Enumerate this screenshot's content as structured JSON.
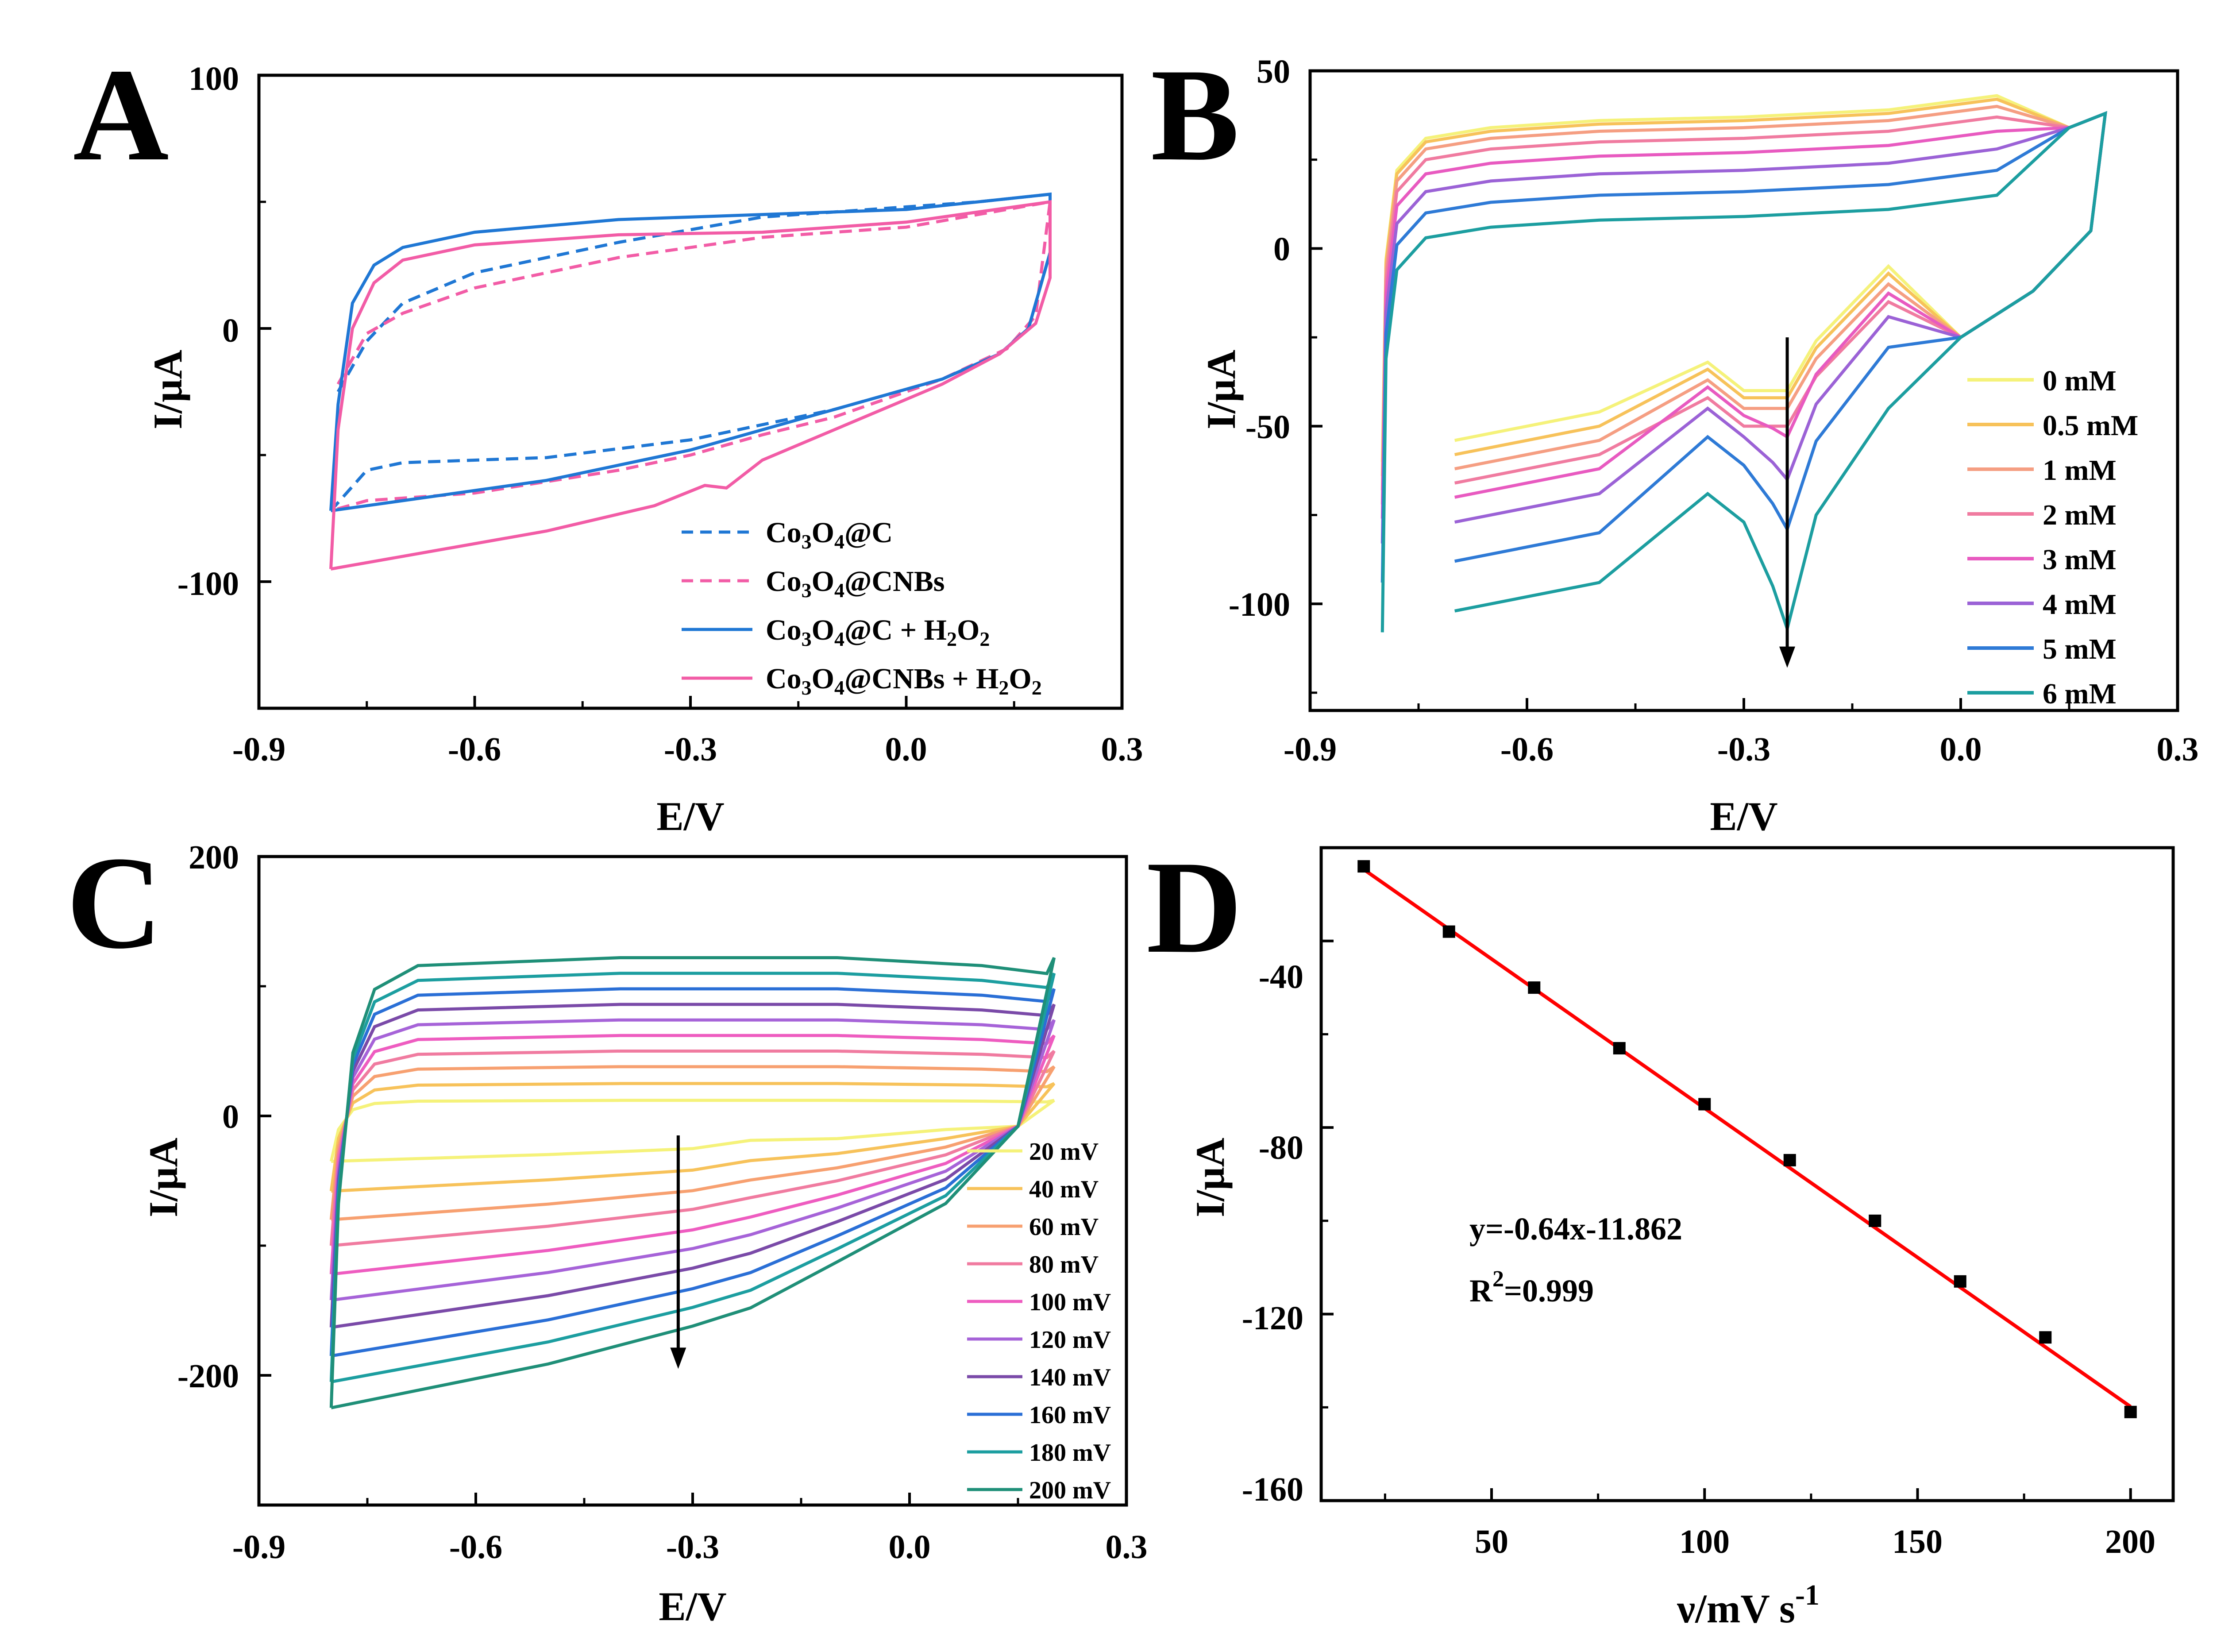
{
  "figure": {
    "panels": [
      "A",
      "B",
      "C",
      "D"
    ]
  },
  "chart_data": [
    {
      "panel": "A",
      "type": "line",
      "xlabel": "E/V",
      "ylabel": "I/μA",
      "xlim": [
        -0.9,
        0.3
      ],
      "ylim": [
        -150,
        100
      ],
      "xticks": [
        "-0.9",
        "-0.6",
        "-0.3",
        "0.0",
        "0.3"
      ],
      "yticks": [
        "100",
        "0",
        "-100"
      ],
      "legend_position": "bottom-right",
      "series": [
        {
          "name": "Co3O4@C",
          "label_parts": [
            "Co",
            "3",
            "O",
            "4",
            "@C"
          ],
          "color": "#1f77d4",
          "dashed": true,
          "cv": {
            "upper": [
              [
                -0.79,
                -25
              ],
              [
                -0.75,
                -5
              ],
              [
                -0.7,
                10
              ],
              [
                -0.6,
                22
              ],
              [
                -0.4,
                34
              ],
              [
                -0.2,
                44
              ],
              [
                0.0,
                48
              ],
              [
                0.1,
                50
              ],
              [
                0.2,
                53
              ]
            ],
            "lower": [
              [
                -0.8,
                -72
              ],
              [
                -0.75,
                -56
              ],
              [
                -0.7,
                -53
              ],
              [
                -0.5,
                -51
              ],
              [
                -0.3,
                -44
              ],
              [
                -0.1,
                -32
              ],
              [
                0.05,
                -20
              ],
              [
                0.13,
                -10
              ],
              [
                0.17,
                0
              ],
              [
                0.2,
                30
              ],
              [
                0.2,
                53
              ]
            ]
          }
        },
        {
          "name": "Co3O4@CNBs",
          "label_parts": [
            "Co",
            "3",
            "O",
            "4",
            "@CNBs"
          ],
          "color": "#f25ca6",
          "dashed": true,
          "cv": {
            "upper": [
              [
                -0.79,
                -22
              ],
              [
                -0.75,
                -2
              ],
              [
                -0.7,
                6
              ],
              [
                -0.6,
                16
              ],
              [
                -0.4,
                28
              ],
              [
                -0.2,
                36
              ],
              [
                0.0,
                40
              ],
              [
                0.1,
                45
              ],
              [
                0.2,
                50
              ]
            ],
            "lower": [
              [
                -0.8,
                -72
              ],
              [
                -0.75,
                -68
              ],
              [
                -0.6,
                -65
              ],
              [
                -0.4,
                -56
              ],
              [
                -0.3,
                -50
              ],
              [
                -0.2,
                -42
              ],
              [
                -0.1,
                -35
              ],
              [
                0.05,
                -20
              ],
              [
                0.14,
                -8
              ],
              [
                0.18,
                5
              ],
              [
                0.2,
                50
              ]
            ]
          }
        },
        {
          "name": "Co3O4@C + H2O2",
          "label_parts": [
            "Co",
            "3",
            "O",
            "4",
            "@C + H",
            "2",
            "O",
            "2"
          ],
          "color": "#1f77d4",
          "dashed": false,
          "cv": {
            "upper": [
              [
                -0.8,
                -72
              ],
              [
                -0.79,
                -30
              ],
              [
                -0.77,
                10
              ],
              [
                -0.74,
                25
              ],
              [
                -0.7,
                32
              ],
              [
                -0.6,
                38
              ],
              [
                -0.4,
                43
              ],
              [
                -0.2,
                45
              ],
              [
                0.0,
                47
              ],
              [
                0.1,
                50
              ],
              [
                0.2,
                53
              ]
            ],
            "lower": [
              [
                -0.8,
                -72
              ],
              [
                -0.7,
                -68
              ],
              [
                -0.5,
                -60
              ],
              [
                -0.3,
                -48
              ],
              [
                -0.1,
                -32
              ],
              [
                0.05,
                -20
              ],
              [
                0.13,
                -10
              ],
              [
                0.17,
                0
              ],
              [
                0.2,
                30
              ],
              [
                0.2,
                53
              ]
            ]
          }
        },
        {
          "name": "Co3O4@CNBs + H2O2",
          "label_parts": [
            "Co",
            "3",
            "O",
            "4",
            "@CNBs + H",
            "2",
            "O",
            "2"
          ],
          "color": "#f25ca6",
          "dashed": false,
          "cv": {
            "upper": [
              [
                -0.8,
                -95
              ],
              [
                -0.79,
                -40
              ],
              [
                -0.77,
                0
              ],
              [
                -0.74,
                18
              ],
              [
                -0.7,
                27
              ],
              [
                -0.6,
                33
              ],
              [
                -0.4,
                37
              ],
              [
                -0.2,
                38
              ],
              [
                0.0,
                42
              ],
              [
                0.1,
                46
              ],
              [
                0.2,
                50
              ]
            ],
            "lower": [
              [
                -0.8,
                -95
              ],
              [
                -0.7,
                -90
              ],
              [
                -0.5,
                -80
              ],
              [
                -0.35,
                -70
              ],
              [
                -0.28,
                -62
              ],
              [
                -0.25,
                -63
              ],
              [
                -0.2,
                -52
              ],
              [
                -0.1,
                -40
              ],
              [
                0.05,
                -22
              ],
              [
                0.13,
                -10
              ],
              [
                0.18,
                2
              ],
              [
                0.2,
                20
              ],
              [
                0.2,
                50
              ]
            ]
          }
        }
      ]
    },
    {
      "panel": "B",
      "type": "line",
      "xlabel": "E/V",
      "ylabel": "I/μA",
      "xlim": [
        -0.9,
        0.3
      ],
      "ylim": [
        -130,
        50
      ],
      "xticks": [
        "-0.9",
        "-0.6",
        "-0.3",
        "0.0",
        "0.3"
      ],
      "yticks": [
        "50",
        "0",
        "-50",
        "-100"
      ],
      "legend_position": "right",
      "arrow": {
        "x": -0.24,
        "y_from": -25,
        "y_to": -118
      },
      "series": [
        {
          "name": "0 mM",
          "color": "#f5f27a",
          "upper_level": 37,
          "lower_start": -60,
          "peak_current": -40,
          "peak_depth": 0
        },
        {
          "name": "0.5 mM",
          "color": "#f7c25a",
          "upper_level": 36,
          "lower_start": -64,
          "peak_current": -42,
          "peak_depth": 0
        },
        {
          "name": "1 mM",
          "color": "#f59e82",
          "upper_level": 34,
          "lower_start": -68,
          "peak_current": -45,
          "peak_depth": 0
        },
        {
          "name": "2 mM",
          "color": "#f07ba0",
          "upper_level": 31,
          "lower_start": -72,
          "peak_current": -50,
          "peak_depth": 0
        },
        {
          "name": "3 mM",
          "color": "#e85ac0",
          "upper_level": 27,
          "lower_start": -76,
          "peak_current": -53,
          "peak_depth": 6
        },
        {
          "name": "4 mM",
          "color": "#9b62d6",
          "upper_level": 22,
          "lower_start": -83,
          "peak_current": -65,
          "peak_depth": 12
        },
        {
          "name": "5 mM",
          "color": "#2e7ad6",
          "upper_level": 16,
          "lower_start": -94,
          "peak_current": -79,
          "peak_depth": 18
        },
        {
          "name": "6 mM",
          "color": "#1c9ea0",
          "upper_level": 9,
          "lower_start": -108,
          "peak_current": -107,
          "peak_depth": 30
        }
      ]
    },
    {
      "panel": "C",
      "type": "line",
      "xlabel": "E/V",
      "ylabel": "I/μA",
      "xlim": [
        -0.9,
        0.3
      ],
      "ylim": [
        -300,
        200
      ],
      "xticks": [
        "-0.9",
        "-0.6",
        "-0.3",
        "0.0",
        "0.3"
      ],
      "yticks": [
        "200",
        "0",
        "-200"
      ],
      "legend_position": "right",
      "arrow": {
        "x": -0.32,
        "y_from": -15,
        "y_to": -195
      },
      "series": [
        {
          "name": "20 mV",
          "color": "#f5f27a",
          "upper_level": 12,
          "lower_start": -35
        },
        {
          "name": "40 mV",
          "color": "#f7c25a",
          "upper_level": 25,
          "lower_start": -58
        },
        {
          "name": "60 mV",
          "color": "#f7a070",
          "upper_level": 38,
          "lower_start": -80
        },
        {
          "name": "80 mV",
          "color": "#f07ba0",
          "upper_level": 50,
          "lower_start": -100
        },
        {
          "name": "100 mV",
          "color": "#ee5cc0",
          "upper_level": 62,
          "lower_start": -122
        },
        {
          "name": "120 mV",
          "color": "#a663d8",
          "upper_level": 74,
          "lower_start": -142
        },
        {
          "name": "140 mV",
          "color": "#7a4aa8",
          "upper_level": 86,
          "lower_start": -163
        },
        {
          "name": "160 mV",
          "color": "#2a6fd6",
          "upper_level": 98,
          "lower_start": -185
        },
        {
          "name": "180 mV",
          "color": "#1c9ea0",
          "upper_level": 110,
          "lower_start": -205
        },
        {
          "name": "200 mV",
          "color": "#1f8f78",
          "upper_level": 122,
          "lower_start": -225
        }
      ]
    },
    {
      "panel": "D",
      "type": "scatter",
      "xlabel_parts": [
        "ν/mV s",
        "-1"
      ],
      "ylabel": "I/μA",
      "xlim": [
        10,
        210
      ],
      "ylim": [
        -160,
        -20
      ],
      "xticks": [
        "50",
        "100",
        "150",
        "200"
      ],
      "yticks": [
        "-40",
        "-80",
        "-120",
        "-160"
      ],
      "x": [
        20,
        40,
        60,
        80,
        100,
        120,
        140,
        160,
        180,
        200
      ],
      "y": [
        -24,
        -38,
        -50,
        -63,
        -75,
        -87,
        -100,
        -113,
        -125,
        -141
      ],
      "fit": {
        "slope": -0.64,
        "intercept": -11.862,
        "color": "#ff0000"
      },
      "equation": "y=-0.64x-11.862",
      "r2_parts": [
        "R",
        "2",
        "=0.999"
      ]
    }
  ]
}
